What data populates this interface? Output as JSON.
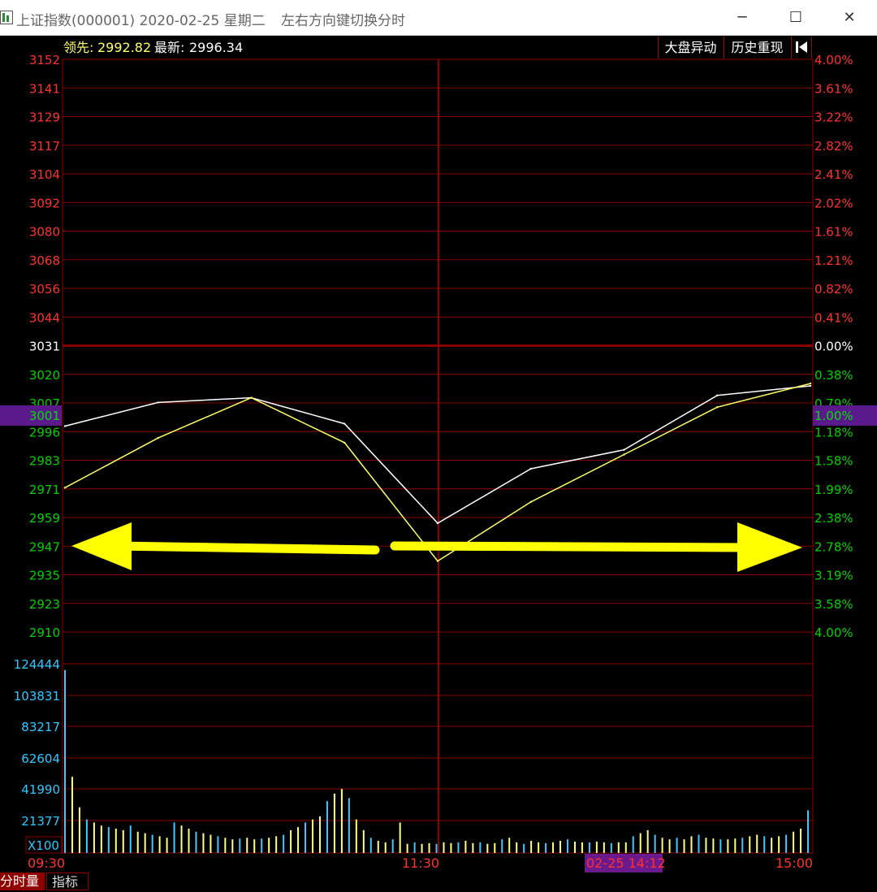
{
  "window": {
    "title": "上证指数(000001) 2020-02-25 星期二",
    "hint": "左右方向键切换分时",
    "minimize": "─",
    "maximize": "☐",
    "close": "✕"
  },
  "header": {
    "lead_label": "领先:",
    "lead_value": "2992.82",
    "latest_label": "最新:",
    "latest_value": "2996.34",
    "btn_market_move": "大盘异动",
    "btn_history": "历史重现",
    "btn_back_icon": "back-to-start-icon"
  },
  "price_axis": {
    "left_labels": [
      "3152",
      "3141",
      "3129",
      "3117",
      "3104",
      "3092",
      "3080",
      "3068",
      "3056",
      "3044",
      "3031",
      "3020",
      "3007",
      "2996",
      "2983",
      "2971",
      "2959",
      "2947",
      "2935",
      "2923",
      "2910"
    ],
    "right_labels": [
      "4.00%",
      "3.61%",
      "3.22%",
      "2.82%",
      "2.41%",
      "2.02%",
      "1.61%",
      "1.21%",
      "0.82%",
      "0.41%",
      "0.00%",
      "0.38%",
      "0.79%",
      "1.18%",
      "1.58%",
      "1.99%",
      "2.38%",
      "2.78%",
      "3.19%",
      "3.58%",
      "4.00%"
    ],
    "crosshair_price": "3001",
    "crosshair_pct": "1.00%"
  },
  "volume_axis": {
    "labels": [
      "124444",
      "103831",
      "83217",
      "62604",
      "41990",
      "21377"
    ],
    "unit": "X100"
  },
  "time_axis": {
    "start": "09:30",
    "mid": "11:30",
    "end": "15:00",
    "cursor": "02-25 14:12"
  },
  "colors": {
    "background": "#000000",
    "grid": "#8b0000",
    "up": "#ff3030",
    "down": "#00d000",
    "index_line": "#ffffff",
    "lead_line": "#ffff66",
    "volume_up": "#ffff80",
    "volume_down": "#40c8ff",
    "arrow": "#ffff00",
    "crosshair_band": "#5a1a8c"
  },
  "chart_data": {
    "type": "line",
    "title": "",
    "x": [
      "09:30",
      "10:00",
      "10:30",
      "11:00",
      "11:30",
      "13:30",
      "14:00",
      "14:30",
      "15:00"
    ],
    "prev_close": 3031,
    "ylim": [
      2910,
      3152
    ],
    "series": [
      {
        "name": "最新",
        "values": [
          2997,
          3007,
          3009,
          2998,
          2956,
          2979,
          2987,
          3010,
          3014
        ]
      },
      {
        "name": "领先",
        "values": [
          2971,
          2992,
          3009,
          2990,
          2940,
          2965,
          2985,
          3005,
          3015
        ]
      }
    ],
    "volume": {
      "ylabel": "X100",
      "values": [
        120000,
        50000,
        30000,
        22000,
        20000,
        18000,
        17000,
        16000,
        15000,
        18000,
        14000,
        13000,
        12000,
        11000,
        10000,
        20000,
        18000,
        16000,
        14000,
        13000,
        12000,
        11000,
        10000,
        9000,
        9500,
        10000,
        9000,
        9500,
        10000,
        11000,
        12000,
        15000,
        17000,
        20000,
        22000,
        24000,
        34000,
        39000,
        42000,
        36000,
        22000,
        15000,
        10000,
        8000,
        7000,
        9000,
        20000,
        6000,
        7000,
        6000,
        6500,
        6000,
        7000,
        6500,
        7000,
        8000,
        6500,
        7000,
        6000,
        6500,
        9000,
        10000,
        7000,
        6000,
        8000,
        7000,
        6500,
        7000,
        8000,
        9000,
        7500,
        7000,
        7000,
        7500,
        7000,
        6500,
        7000,
        7000,
        11000,
        13000,
        15000,
        12000,
        10000,
        9000,
        10000,
        9000,
        11000,
        12000,
        10000,
        9500,
        9000,
        9000,
        9500,
        10000,
        11000,
        12000,
        11000,
        10000,
        11000,
        12000,
        14000,
        16000,
        28000
      ]
    },
    "grid": true
  }
}
